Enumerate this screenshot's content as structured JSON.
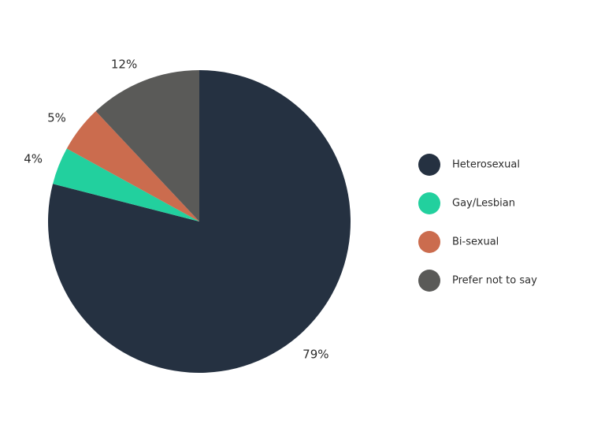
{
  "chart_data": {
    "type": "pie",
    "categories": [
      "Heterosexual",
      "Gay/Lesbian",
      "Bi-sexual",
      "Prefer not to say"
    ],
    "values": [
      79,
      4,
      5,
      12
    ],
    "value_labels": [
      "79%",
      "4%",
      "5%",
      "12%"
    ],
    "colors": [
      "#253141",
      "#22d09e",
      "#cb6c4e",
      "#5a5a58"
    ],
    "legend": "right"
  }
}
